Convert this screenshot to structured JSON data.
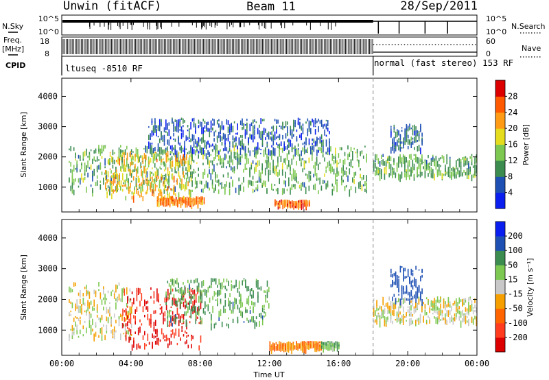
{
  "header": {
    "station": "Unwin (fitACF)",
    "beam": "Beam 11",
    "date": "28/Sep/2011"
  },
  "status_panels": {
    "nsky_label": "N.Sky",
    "nsky_ticks": [
      "10^5",
      "10^0"
    ],
    "nsearch_label": "N.Search",
    "nsearch_ticks": [
      "10^5",
      "10^0"
    ],
    "freq_label_line1": "Freq.",
    "freq_label_line2": "[MHz]",
    "freq_ticks": [
      "18",
      "8"
    ],
    "nave_label": "Nave",
    "nave_ticks": [
      "60",
      "0"
    ],
    "cpid_label": "CPID",
    "cpid_mode_1": "ltuseq -8510 RF",
    "cpid_mode_2": "normal (fast stereo) 153 RF",
    "mode_change_hour": 18.0
  },
  "chart_data": [
    {
      "type": "heatmap",
      "name": "power",
      "ylabel": "Slant Range [km]",
      "yticks": [
        "1000",
        "2000",
        "3000",
        "4000"
      ],
      "ylim": [
        180,
        4600
      ],
      "colorbar_label": "Power [dB]",
      "colorbar_ticks": [
        "4",
        "8",
        "12",
        "16",
        "20",
        "24",
        "28"
      ],
      "colors": [
        "#0a1ef0",
        "#1e50b4",
        "#3c8c50",
        "#7dc850",
        "#e6dc1e",
        "#ff9b14",
        "#ff5a00",
        "#dc0000"
      ],
      "regions": [
        {
          "t": [
            0.4,
            17.6
          ],
          "r": [
            900,
            2400
          ],
          "value": 12
        },
        {
          "t": [
            2.5,
            7.5
          ],
          "r": [
            700,
            2200
          ],
          "value": 20
        },
        {
          "t": [
            5.5,
            8.2
          ],
          "r": [
            500,
            700
          ],
          "value": 24
        },
        {
          "t": [
            12.3,
            14.3
          ],
          "r": [
            450,
            600
          ],
          "value": 26
        },
        {
          "t": [
            5.0,
            15.5
          ],
          "r": [
            2200,
            3300
          ],
          "value": 6
        },
        {
          "t": [
            18.0,
            24.0
          ],
          "r": [
            1400,
            2100
          ],
          "value": 12
        },
        {
          "t": [
            19.0,
            20.8
          ],
          "r": [
            2300,
            3100
          ],
          "value": 8
        }
      ]
    },
    {
      "type": "heatmap",
      "name": "velocity",
      "ylabel": "Slant Range [km]",
      "yticks": [
        "1000",
        "2000",
        "3000",
        "4000"
      ],
      "ylim": [
        180,
        4600
      ],
      "xlabel": "Time UT",
      "xticks": [
        "00:00",
        "04:00",
        "08:00",
        "12:00",
        "16:00",
        "20:00",
        "00:00"
      ],
      "xlim": [
        0,
        24
      ],
      "colorbar_label": "Velocity [m s⁻¹]",
      "colorbar_ticks": [
        "200",
        "100",
        "50",
        "15",
        "-15",
        "-50",
        "-100",
        "-200"
      ],
      "colors": [
        "#0a1ef0",
        "#1e50b4",
        "#3c8c50",
        "#7dc850",
        "#c8c8c8",
        "#f5a000",
        "#ff6400",
        "#ff3c1e",
        "#dc0000"
      ],
      "regions": [
        {
          "t": [
            0.4,
            4.0
          ],
          "r": [
            800,
            2600
          ],
          "value": 0
        },
        {
          "t": [
            3.5,
            8.0
          ],
          "r": [
            500,
            2400
          ],
          "value": -200
        },
        {
          "t": [
            6.0,
            12.0
          ],
          "r": [
            1200,
            2700
          ],
          "value": 60
        },
        {
          "t": [
            12.0,
            15.0
          ],
          "r": [
            450,
            650
          ],
          "value": -60
        },
        {
          "t": [
            15.0,
            16.0
          ],
          "r": [
            500,
            650
          ],
          "value": 40
        },
        {
          "t": [
            18.0,
            24.0
          ],
          "r": [
            1300,
            2100
          ],
          "value": 0
        },
        {
          "t": [
            19.0,
            20.8
          ],
          "r": [
            2000,
            3100
          ],
          "value": 150
        }
      ]
    }
  ]
}
